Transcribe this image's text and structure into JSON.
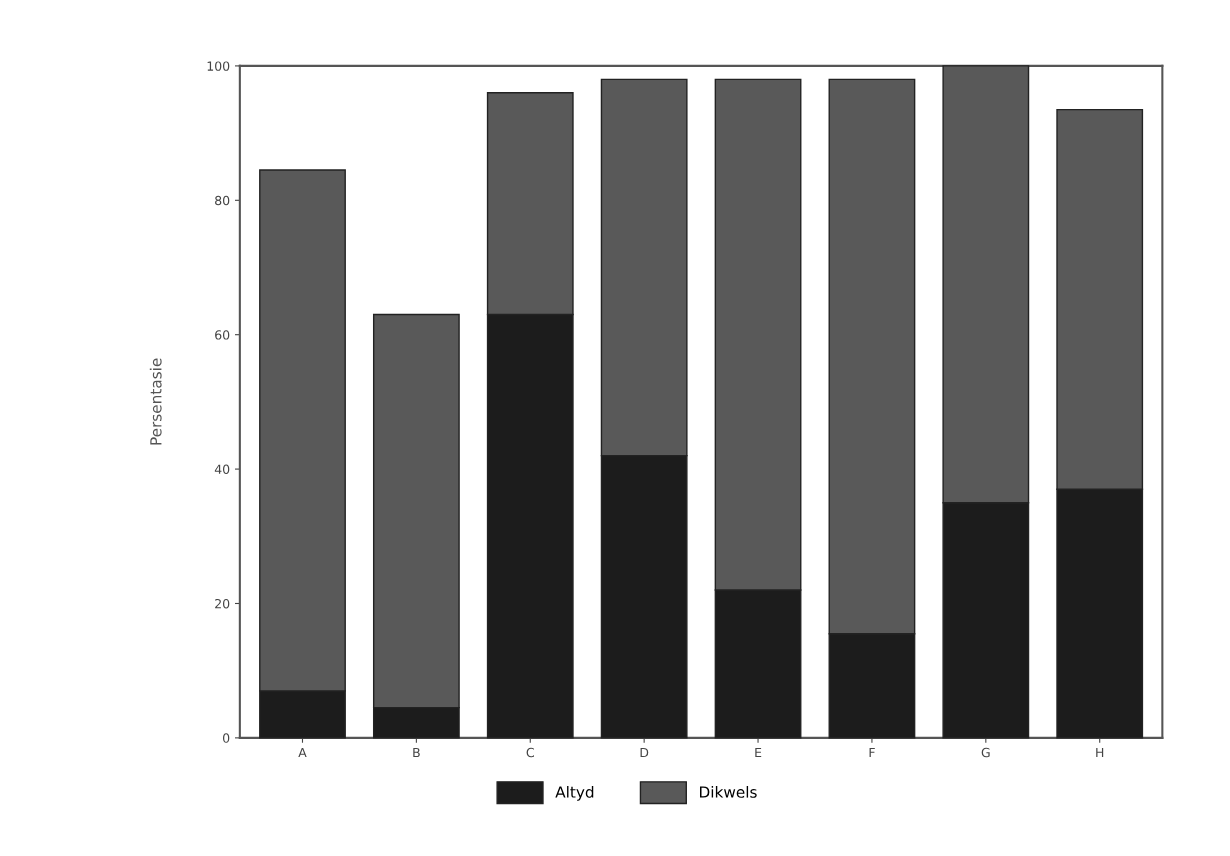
{
  "chart_data": {
    "type": "bar",
    "stacked": true,
    "ylabel": "Persentasie",
    "categories": [
      "A",
      "B",
      "C",
      "D",
      "E",
      "F",
      "G",
      "H"
    ],
    "series": [
      {
        "name": "Altyd",
        "color": "#1c1c1c",
        "values": [
          7,
          4.5,
          63,
          42,
          22,
          15.5,
          35,
          37
        ]
      },
      {
        "name": "Dikwels",
        "color": "#595959",
        "values": [
          77.5,
          58.5,
          33,
          56,
          76,
          82.5,
          65,
          56.5
        ]
      }
    ],
    "ylim": [
      0,
      100
    ],
    "yticks": [
      0,
      20,
      40,
      60,
      80,
      100
    ],
    "grid": false,
    "legend": "bottom"
  }
}
